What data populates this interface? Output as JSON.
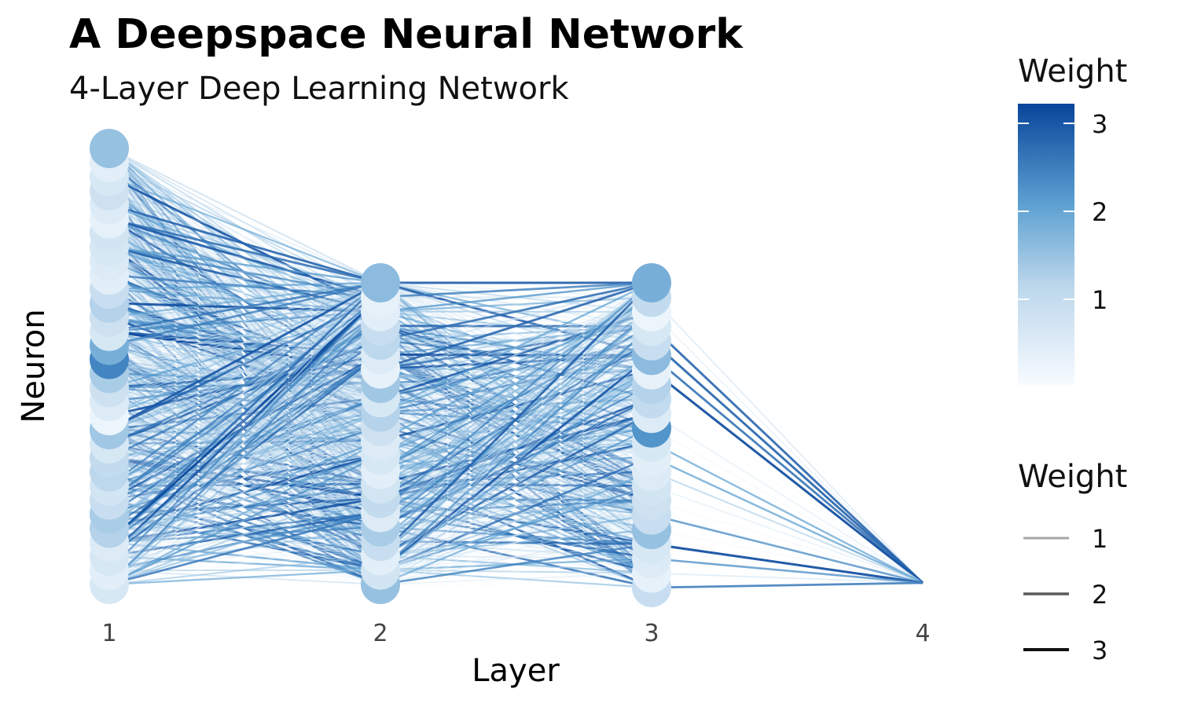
{
  "title": "A Deepspace Neural Network",
  "subtitle": "4-Layer Deep Learning Network",
  "chart_data": {
    "type": "network",
    "xlabel": "Layer",
    "ylabel": "Neuron",
    "x_ticks": [
      "1",
      "2",
      "3",
      "4"
    ],
    "x_range": [
      1,
      4
    ],
    "grid": false,
    "layers": [
      {
        "layer": 1,
        "neurons": 32,
        "weights": [
          1.5,
          0.4,
          0.6,
          0.8,
          0.5,
          0.3,
          0.7,
          0.6,
          0.5,
          0.4,
          0.9,
          1.2,
          0.8,
          0.6,
          1.8,
          2.4,
          1.3,
          0.8,
          0.5,
          0.2,
          1.4,
          0.6,
          1.0,
          1.1,
          0.7,
          0.9,
          1.3,
          1.2,
          0.5,
          0.6,
          0.4,
          0.6
        ]
      },
      {
        "layer": 2,
        "neurons": 22,
        "weights": [
          1.6,
          0.3,
          0.4,
          0.9,
          1.1,
          0.5,
          0.3,
          1.4,
          0.6,
          1.2,
          0.8,
          0.5,
          0.6,
          0.4,
          0.7,
          1.0,
          0.5,
          1.3,
          0.9,
          0.4,
          0.7,
          1.5
        ]
      },
      {
        "layer": 3,
        "neurons": 22,
        "weights": [
          1.8,
          1.0,
          0.2,
          0.6,
          0.9,
          1.6,
          0.3,
          1.2,
          1.0,
          0.5,
          2.2,
          0.6,
          0.4,
          0.5,
          0.7,
          0.8,
          0.9,
          1.5,
          0.6,
          0.5,
          0.3,
          0.9
        ]
      },
      {
        "layer": 4,
        "neurons": 1,
        "weights": [
          0
        ]
      }
    ],
    "edge_color_scale": {
      "min_color": "#f7fbff",
      "max_color": "#08459b"
    },
    "legends": [
      {
        "title": "Weight",
        "type": "colorbar",
        "ticks": [
          "1",
          "2",
          "3"
        ],
        "range": [
          0,
          3.2
        ]
      },
      {
        "title": "Weight",
        "type": "linewidth",
        "entries": [
          {
            "label": "1",
            "color": "#a6a6a6"
          },
          {
            "label": "2",
            "color": "#5a5a5a"
          },
          {
            "label": "3",
            "color": "#111111"
          }
        ]
      }
    ],
    "legend_placement": "right"
  }
}
